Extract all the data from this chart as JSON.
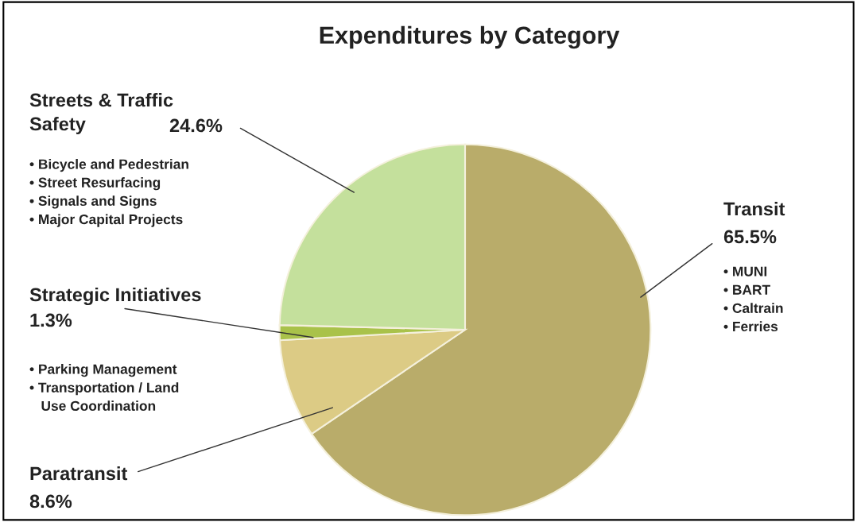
{
  "chart_data": {
    "type": "pie",
    "title": "Expenditures by Category",
    "categories": [
      "Transit",
      "Paratransit",
      "Strategic Initiatives",
      "Streets & Traffic Safety"
    ],
    "values": [
      65.5,
      8.6,
      1.3,
      24.6
    ],
    "value_labels": [
      "65.5%",
      "8.6%",
      "1.3%",
      "24.6%"
    ],
    "colors": [
      "#b9ac6a",
      "#dccb85",
      "#a9c24a",
      "#c4e09c"
    ],
    "annotations": [
      "• MUNI\n• BART\n• Caltrain\n• Ferries",
      "• Parking Management\n• Transportation / Land\n   Use Coordination",
      "• Bicycle and Pedestrian\n• Street Resurfacing\n• Signals and Signs\n• Major Capital Projects"
    ],
    "legend": false
  }
}
